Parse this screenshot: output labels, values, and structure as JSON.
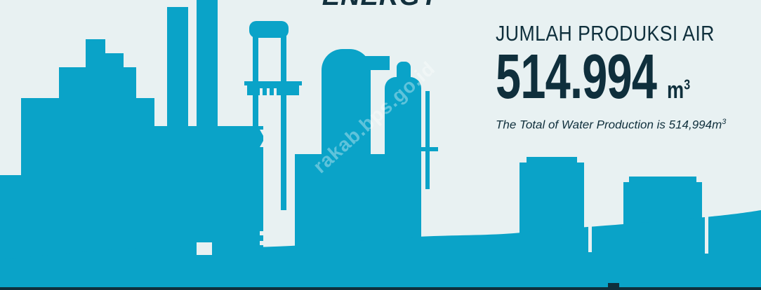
{
  "section_title": "ENERGY",
  "production": {
    "label": "JUMLAH PRODUKSI AIR",
    "value": "514.994",
    "unit": "m",
    "unit_superscript": "3",
    "description": "The Total of Water Production is 514,994m",
    "description_superscript": "3"
  },
  "watermark": "rakab.bps.go.id",
  "colors": {
    "background": "#e8f1f2",
    "skyline": "#0aa3c8",
    "text": "#0f2f3c"
  }
}
